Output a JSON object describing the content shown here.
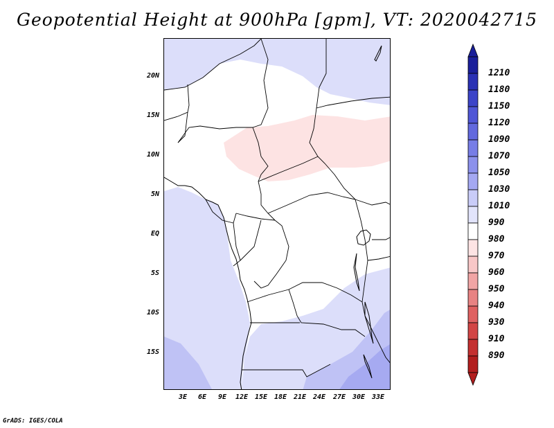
{
  "title": "Geopotential Height at 900hPa [gpm], VT: 2020042715",
  "credit": "GrADS: IGES/COLA",
  "map": {
    "region": "Central Africa",
    "lat_range": [
      -20,
      25
    ],
    "lon_range": [
      0,
      35
    ],
    "lat_labels": [
      "20N",
      "15N",
      "10N",
      "5N",
      "EQ",
      "5S",
      "10S",
      "15S"
    ],
    "lon_labels": [
      "3E",
      "6E",
      "9E",
      "12E",
      "15E",
      "18E",
      "21E",
      "24E",
      "27E",
      "30E",
      "33E"
    ]
  },
  "colorbar": {
    "labels": [
      "1210",
      "1180",
      "1150",
      "1120",
      "1090",
      "1070",
      "1050",
      "1030",
      "1010",
      "990",
      "980",
      "970",
      "960",
      "950",
      "940",
      "930",
      "910",
      "890"
    ],
    "colors": [
      "#1a1f9a",
      "#2a31b4",
      "#3c44c8",
      "#4f56d6",
      "#6269de",
      "#777de6",
      "#8c91ec",
      "#a4a8f2",
      "#c9ccf8",
      "#e2e4fb",
      "#ffffff",
      "#fde4e4",
      "#f8c7c7",
      "#f1a5a5",
      "#e88383",
      "#df6161",
      "#d24545",
      "#c43030",
      "#b21e1e"
    ]
  }
}
